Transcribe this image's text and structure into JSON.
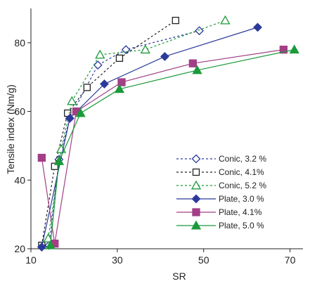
{
  "chart_data": {
    "type": "line",
    "xlabel": "SR",
    "ylabel": "Tensile index (Nm/g)",
    "xlim": [
      10,
      73
    ],
    "ylim": [
      20,
      90
    ],
    "xticks": [
      10,
      30,
      50,
      70
    ],
    "xtick_labels": [
      "10",
      "30",
      "50",
      "70"
    ],
    "yticks": [
      20,
      40,
      60,
      80
    ],
    "ytick_labels": [
      "20",
      "40",
      "60",
      "80"
    ],
    "grid": false,
    "legend_position": "lower-right",
    "series": [
      {
        "name": "Conic, 3.2 %",
        "color": "#2b3a9a",
        "dash": "dotted",
        "marker": "diamond-open",
        "x": [
          14.2,
          16.5,
          19.0,
          25.5,
          32.0,
          49.0
        ],
        "y": [
          21.0,
          46.0,
          58.0,
          73.5,
          78.0,
          83.5
        ]
      },
      {
        "name": "Conic, 4.1%",
        "color": "#222222",
        "dash": "dotted",
        "marker": "square-open",
        "x": [
          12.5,
          15.5,
          18.5,
          23.0,
          30.5,
          43.5
        ],
        "y": [
          21.0,
          44.0,
          59.5,
          67.0,
          75.5,
          86.5
        ]
      },
      {
        "name": "Conic, 5.2 %",
        "color": "#1a9a3a",
        "dash": "dotted",
        "marker": "triangle-open",
        "x": [
          14.0,
          17.0,
          19.5,
          26.0,
          36.5,
          55.0
        ],
        "y": [
          23.0,
          49.0,
          63.0,
          76.5,
          78.0,
          86.5
        ]
      },
      {
        "name": "Plate, 3.0 %",
        "color": "#2b3a9a",
        "dash": "solid",
        "marker": "diamond-filled",
        "x": [
          12.5,
          19.0,
          27.0,
          41.0,
          62.5
        ],
        "y": [
          20.5,
          58.0,
          68.0,
          76.0,
          84.5
        ]
      },
      {
        "name": "Plate, 4.1%",
        "color": "#a23f86",
        "dash": "solid",
        "marker": "square-filled",
        "x": [
          12.5,
          15.5,
          20.5,
          31.0,
          47.5,
          68.5
        ],
        "y": [
          46.5,
          21.5,
          60.0,
          68.5,
          74.0,
          78.0
        ]
      },
      {
        "name": "Plate, 5.0 %",
        "color": "#1a9a3a",
        "dash": "solid",
        "marker": "triangle-filled",
        "x": [
          14.5,
          16.5,
          21.5,
          30.5,
          48.5,
          71.0
        ],
        "y": [
          21.0,
          45.5,
          59.5,
          66.5,
          72.0,
          78.0
        ]
      }
    ]
  }
}
